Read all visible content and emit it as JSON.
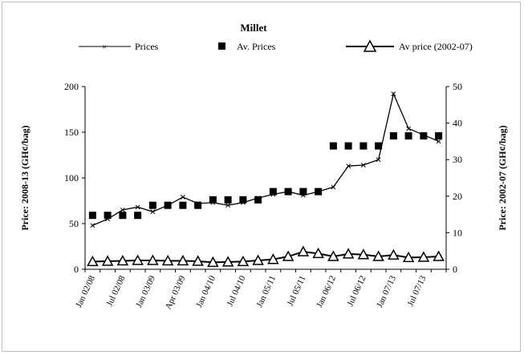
{
  "chart_data": {
    "type": "line",
    "title": "Millet",
    "ylabel_left": "Price: 2008-13 (GH¢/bag)",
    "ylabel_right": "Price: 2002-07 (GH¢/bag)",
    "ylim_left": [
      0,
      200
    ],
    "yticks_left": [
      0,
      50,
      100,
      150,
      200
    ],
    "ylim_right": [
      0,
      50
    ],
    "yticks_right": [
      0,
      10,
      20,
      30,
      40,
      50
    ],
    "grid": false,
    "legend_position": "top",
    "x_tick_labels": [
      "Jan 02/08",
      "Jul 02/08",
      "Jan 03/09",
      "Apr 03/09",
      "Jan 04/10",
      "Jul 04/10",
      "Jan 05/11",
      "Jul 05/11",
      "Jan 06/12",
      "Jul 06/12",
      "Jan 07/13",
      "Jul 07/13"
    ],
    "n_points": 24,
    "series": [
      {
        "name": "Prices",
        "axis": "left",
        "marker": "x",
        "values": [
          48,
          55,
          65,
          68,
          63,
          70,
          79,
          72,
          73,
          70,
          73,
          78,
          82,
          85,
          81,
          85,
          90,
          113,
          114,
          120,
          192,
          154,
          147,
          140
        ]
      },
      {
        "name": "Av. Prices",
        "axis": "left",
        "marker": "square",
        "values": [
          59,
          59,
          59,
          59,
          70,
          70,
          70,
          70,
          76,
          76,
          76,
          76,
          85,
          85,
          85,
          85,
          135,
          135,
          135,
          135,
          146,
          146,
          146,
          146
        ]
      },
      {
        "name": "Av price (2002-07)",
        "axis": "right",
        "marker": "triangle",
        "values": [
          2.1,
          2.2,
          2.3,
          2.4,
          2.4,
          2.3,
          2.3,
          2.2,
          1.9,
          2.0,
          2.1,
          2.4,
          2.7,
          3.5,
          4.8,
          4.3,
          3.5,
          4.2,
          4.0,
          3.5,
          3.9,
          3.2,
          3.3,
          3.5
        ]
      }
    ]
  }
}
